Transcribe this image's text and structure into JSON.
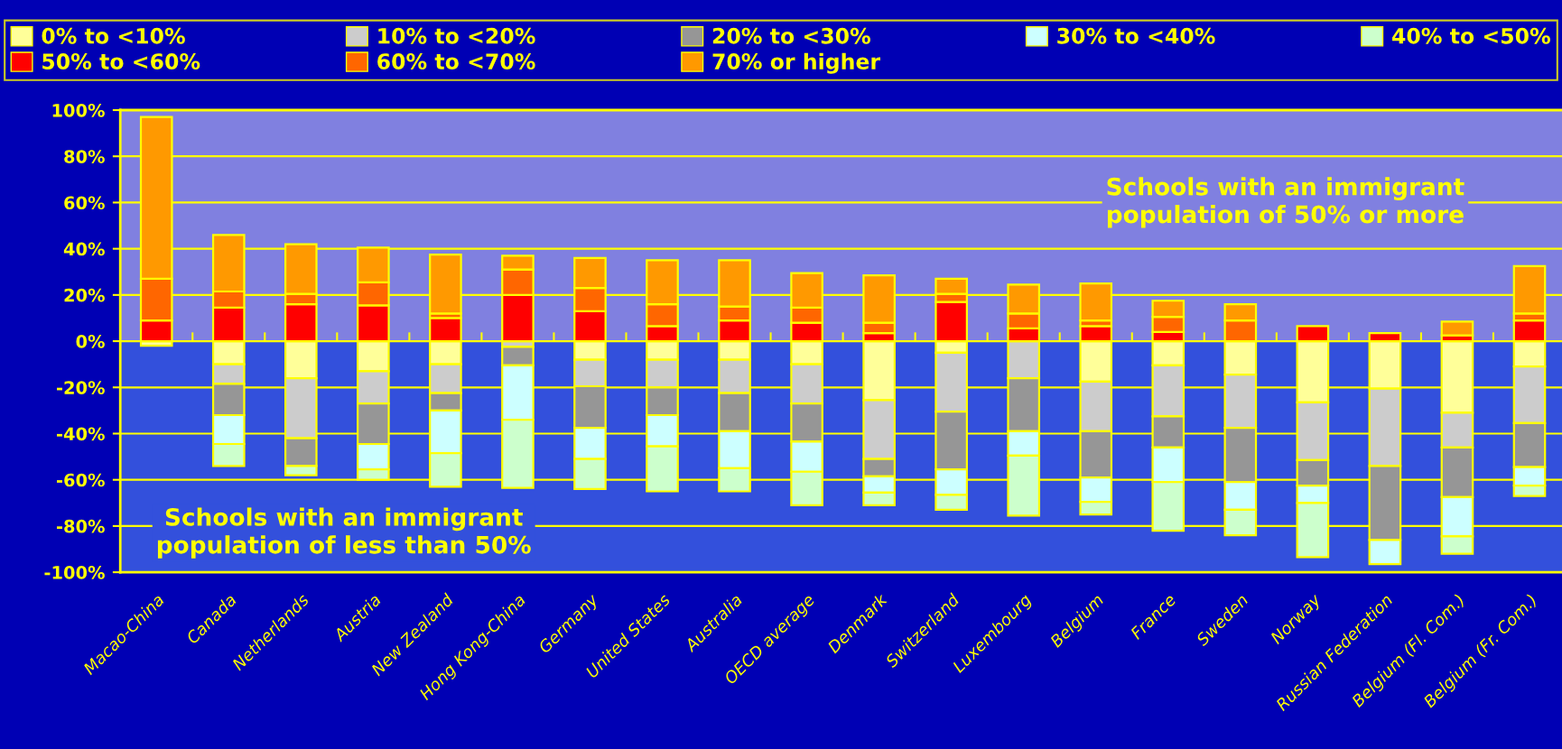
{
  "chart_data": {
    "type": "bar",
    "stacked": true,
    "categories": [
      "Macao-China",
      "Canada",
      "Netherlands",
      "Austria",
      "New Zealand",
      "Hong Kong-China",
      "Germany",
      "United States",
      "Australia",
      "OECD average",
      "Denmark",
      "Switzerland",
      "Luxembourg",
      "Belgium",
      "France",
      "Sweden",
      "Norway",
      "Russian Federation",
      "Belgium (Fl. Com.)",
      "Belgium (Fr. Com.)"
    ],
    "series": [
      {
        "name": "0% to <10%",
        "color": "#ffff99",
        "values": [
          -2,
          -10,
          -16,
          -13,
          -10,
          null,
          -8,
          -8,
          -8,
          -10,
          -25.5,
          -5,
          null,
          -17.5,
          -10.5,
          -14.5,
          -26.5,
          -20.5,
          -31,
          -11
        ]
      },
      {
        "name": "10% to <20%",
        "color": "#cccccc",
        "values": [
          null,
          -8.5,
          -26,
          -14,
          -12.5,
          -2.5,
          -11.5,
          -12,
          -14.5,
          -17,
          -25.5,
          -25.5,
          -16,
          -21.5,
          -22,
          -23,
          -25,
          -33.5,
          -15,
          -24.5
        ]
      },
      {
        "name": "20% to <30%",
        "color": "#969696",
        "values": [
          null,
          -13.5,
          -12,
          -17.5,
          -7.5,
          -8,
          -18,
          -12,
          -16.5,
          -16.5,
          -7.5,
          -25,
          -23,
          -20,
          -13.5,
          -23.5,
          -11,
          -32,
          -21.5,
          -19
        ]
      },
      {
        "name": "30% to <40%",
        "color": "#ccffff",
        "values": [
          null,
          -12.5,
          null,
          -11,
          -18.5,
          -23.5,
          -13.5,
          -13.5,
          -16,
          -13,
          -7,
          -11,
          -10.5,
          -10.5,
          -15,
          -12,
          -7.5,
          -10.5,
          -17,
          -8
        ]
      },
      {
        "name": "40% to <50%",
        "color": "#ccffcc",
        "values": [
          null,
          -9.5,
          -4,
          -4.5,
          -14.5,
          -29.5,
          -13,
          -19.5,
          -10,
          -14.5,
          -5.5,
          -6.5,
          -26,
          -5.5,
          -21,
          -11,
          -23.5,
          null,
          -7.5,
          -4.5
        ]
      },
      {
        "name": "50% to <60%",
        "color": "#ff0000",
        "values": [
          9,
          14.5,
          16,
          15.5,
          10,
          20,
          13,
          6.5,
          9,
          8,
          3.5,
          17,
          5.5,
          6.5,
          4,
          null,
          6.5,
          3.5,
          2.5,
          9
        ]
      },
      {
        "name": "60% to <70%",
        "color": "#ff6600",
        "values": [
          18,
          7,
          4.5,
          10,
          2,
          11,
          10,
          9.5,
          6,
          6.5,
          4.5,
          3.5,
          6.5,
          2.5,
          6.5,
          9,
          null,
          null,
          null,
          3
        ]
      },
      {
        "name": "70% or higher",
        "color": "#ff9900",
        "values": [
          70,
          24.5,
          21.5,
          15,
          25.5,
          6,
          13,
          19,
          20,
          15,
          20.5,
          6.5,
          12.5,
          16,
          7,
          7,
          null,
          null,
          6,
          20.5
        ]
      }
    ],
    "ylim": [
      -100,
      100
    ],
    "yticks": [
      {
        "value": -100,
        "label": "-100%"
      },
      {
        "value": -80,
        "label": "-80%"
      },
      {
        "value": -60,
        "label": "-60%"
      },
      {
        "value": -40,
        "label": "-40%"
      },
      {
        "value": -20,
        "label": "-20%"
      },
      {
        "value": 0,
        "label": "0%"
      },
      {
        "value": 20,
        "label": "20%"
      },
      {
        "value": 40,
        "label": "40%"
      },
      {
        "value": 60,
        "label": "60%"
      },
      {
        "value": 80,
        "label": "80%"
      },
      {
        "value": 100,
        "label": "100%"
      }
    ],
    "grid": "y",
    "legend": "top",
    "bands": [
      {
        "axis": "y",
        "from": 0,
        "to": 100,
        "color": "#8080e0",
        "label": "Schools with an immigrant\npopulation of 50% or more"
      },
      {
        "axis": "y",
        "from": -100,
        "to": 0,
        "color": "#3350dc",
        "label": "Schools with an immigrant\npopulation of less than 50%"
      }
    ]
  }
}
